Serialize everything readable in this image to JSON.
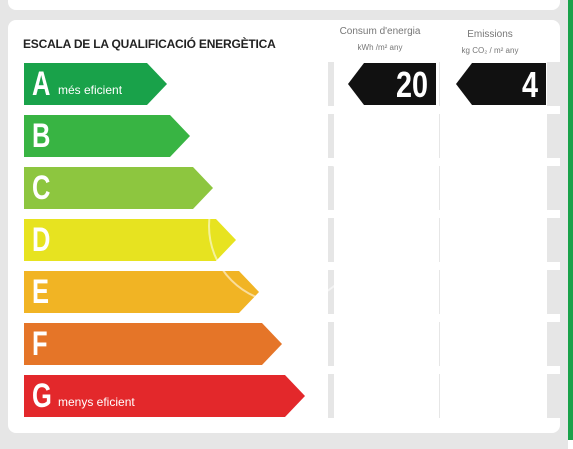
{
  "title": "ESCALA DE LA QUALIFICACIÓ ENERGÈTICA",
  "columns": {
    "consum": {
      "label": "Consum d'energia",
      "unit": "kWh /m² any"
    },
    "emissions": {
      "label": "Emissions",
      "unit": "kg CO₂ / m² any"
    }
  },
  "ratings": [
    {
      "letter": "A",
      "label": "més eficient",
      "color": "#19a24a"
    },
    {
      "letter": "B",
      "label": "",
      "color": "#38b443"
    },
    {
      "letter": "C",
      "label": "",
      "color": "#8dc63f"
    },
    {
      "letter": "D",
      "label": "",
      "color": "#e7e320"
    },
    {
      "letter": "E",
      "label": "",
      "color": "#f1b424"
    },
    {
      "letter": "F",
      "label": "",
      "color": "#e57528"
    },
    {
      "letter": "G",
      "label": "menys eficient",
      "color": "#e3282b"
    }
  ],
  "current_rating": "A",
  "consum_value": "20",
  "emissions_value": "4"
}
